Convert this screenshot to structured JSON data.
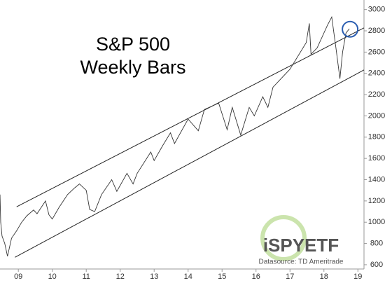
{
  "chart_data": {
    "type": "line",
    "title": "S&P 500",
    "subtitle": "Weekly Bars",
    "logo": "iSPYETF",
    "source": "Datasource: TD Ameritrade",
    "color": "#333333",
    "x": [
      2008.96,
      2008.98,
      2009.02,
      2009.1,
      2009.18,
      2009.3,
      2009.45,
      2009.6,
      2009.75,
      2009.95,
      2010.05,
      2010.3,
      2010.4,
      2010.5,
      2010.7,
      2010.95,
      2011.15,
      2011.3,
      2011.5,
      2011.6,
      2011.75,
      2011.95,
      2012.25,
      2012.4,
      2012.7,
      2012.88,
      2013.0,
      2013.4,
      2013.5,
      2013.75,
      2013.98,
      2014.1,
      2014.5,
      2014.8,
      2014.98,
      2015.4,
      2015.65,
      2015.8,
      2016.05,
      2016.3,
      2016.45,
      2016.7,
      2016.85,
      2017.0,
      2017.5,
      2017.98,
      2018.07,
      2018.12,
      2018.3,
      2018.6,
      2018.73,
      2018.85,
      2018.97,
      2019.05,
      2019.15,
      2019.25
    ],
    "values": [
      1260,
      1000,
      870,
      800,
      680,
      850,
      920,
      1000,
      1060,
      1115,
      1080,
      1200,
      1070,
      1030,
      1140,
      1260,
      1320,
      1360,
      1300,
      1120,
      1100,
      1260,
      1400,
      1290,
      1460,
      1360,
      1460,
      1660,
      1580,
      1720,
      1840,
      1740,
      1970,
      1860,
      2060,
      2120,
      1870,
      2080,
      1820,
      2080,
      2000,
      2180,
      2080,
      2270,
      2440,
      2690,
      2870,
      2580,
      2640,
      2850,
      2930,
      2650,
      2350,
      2600,
      2780,
      2820
    ],
    "trendlines": [
      {
        "x": [
          2009.45,
          2019.68
        ],
        "y": [
          1145,
          2828
        ]
      },
      {
        "x": [
          2009.4,
          2019.68
        ],
        "y": [
          670,
          2432
        ]
      }
    ],
    "highlight": {
      "x": 2019.27,
      "y": 2815,
      "color": "#2a5db0"
    },
    "xlim": [
      2008.96,
      2019.68
    ],
    "ylim": [
      560,
      3090
    ],
    "xticks": [
      {
        "value": 2009.5,
        "label": "09"
      },
      {
        "value": 2010.5,
        "label": "10"
      },
      {
        "value": 2011.5,
        "label": "11"
      },
      {
        "value": 2012.5,
        "label": "12"
      },
      {
        "value": 2013.5,
        "label": "13"
      },
      {
        "value": 2014.5,
        "label": "14"
      },
      {
        "value": 2015.5,
        "label": "15"
      },
      {
        "value": 2016.5,
        "label": "16"
      },
      {
        "value": 2017.5,
        "label": "17"
      },
      {
        "value": 2018.5,
        "label": "18"
      },
      {
        "value": 2019.5,
        "label": "19"
      }
    ],
    "yticks": [
      600,
      800,
      1000,
      1200,
      1400,
      1600,
      1800,
      2000,
      2200,
      2400,
      2600,
      2800,
      3000
    ]
  }
}
